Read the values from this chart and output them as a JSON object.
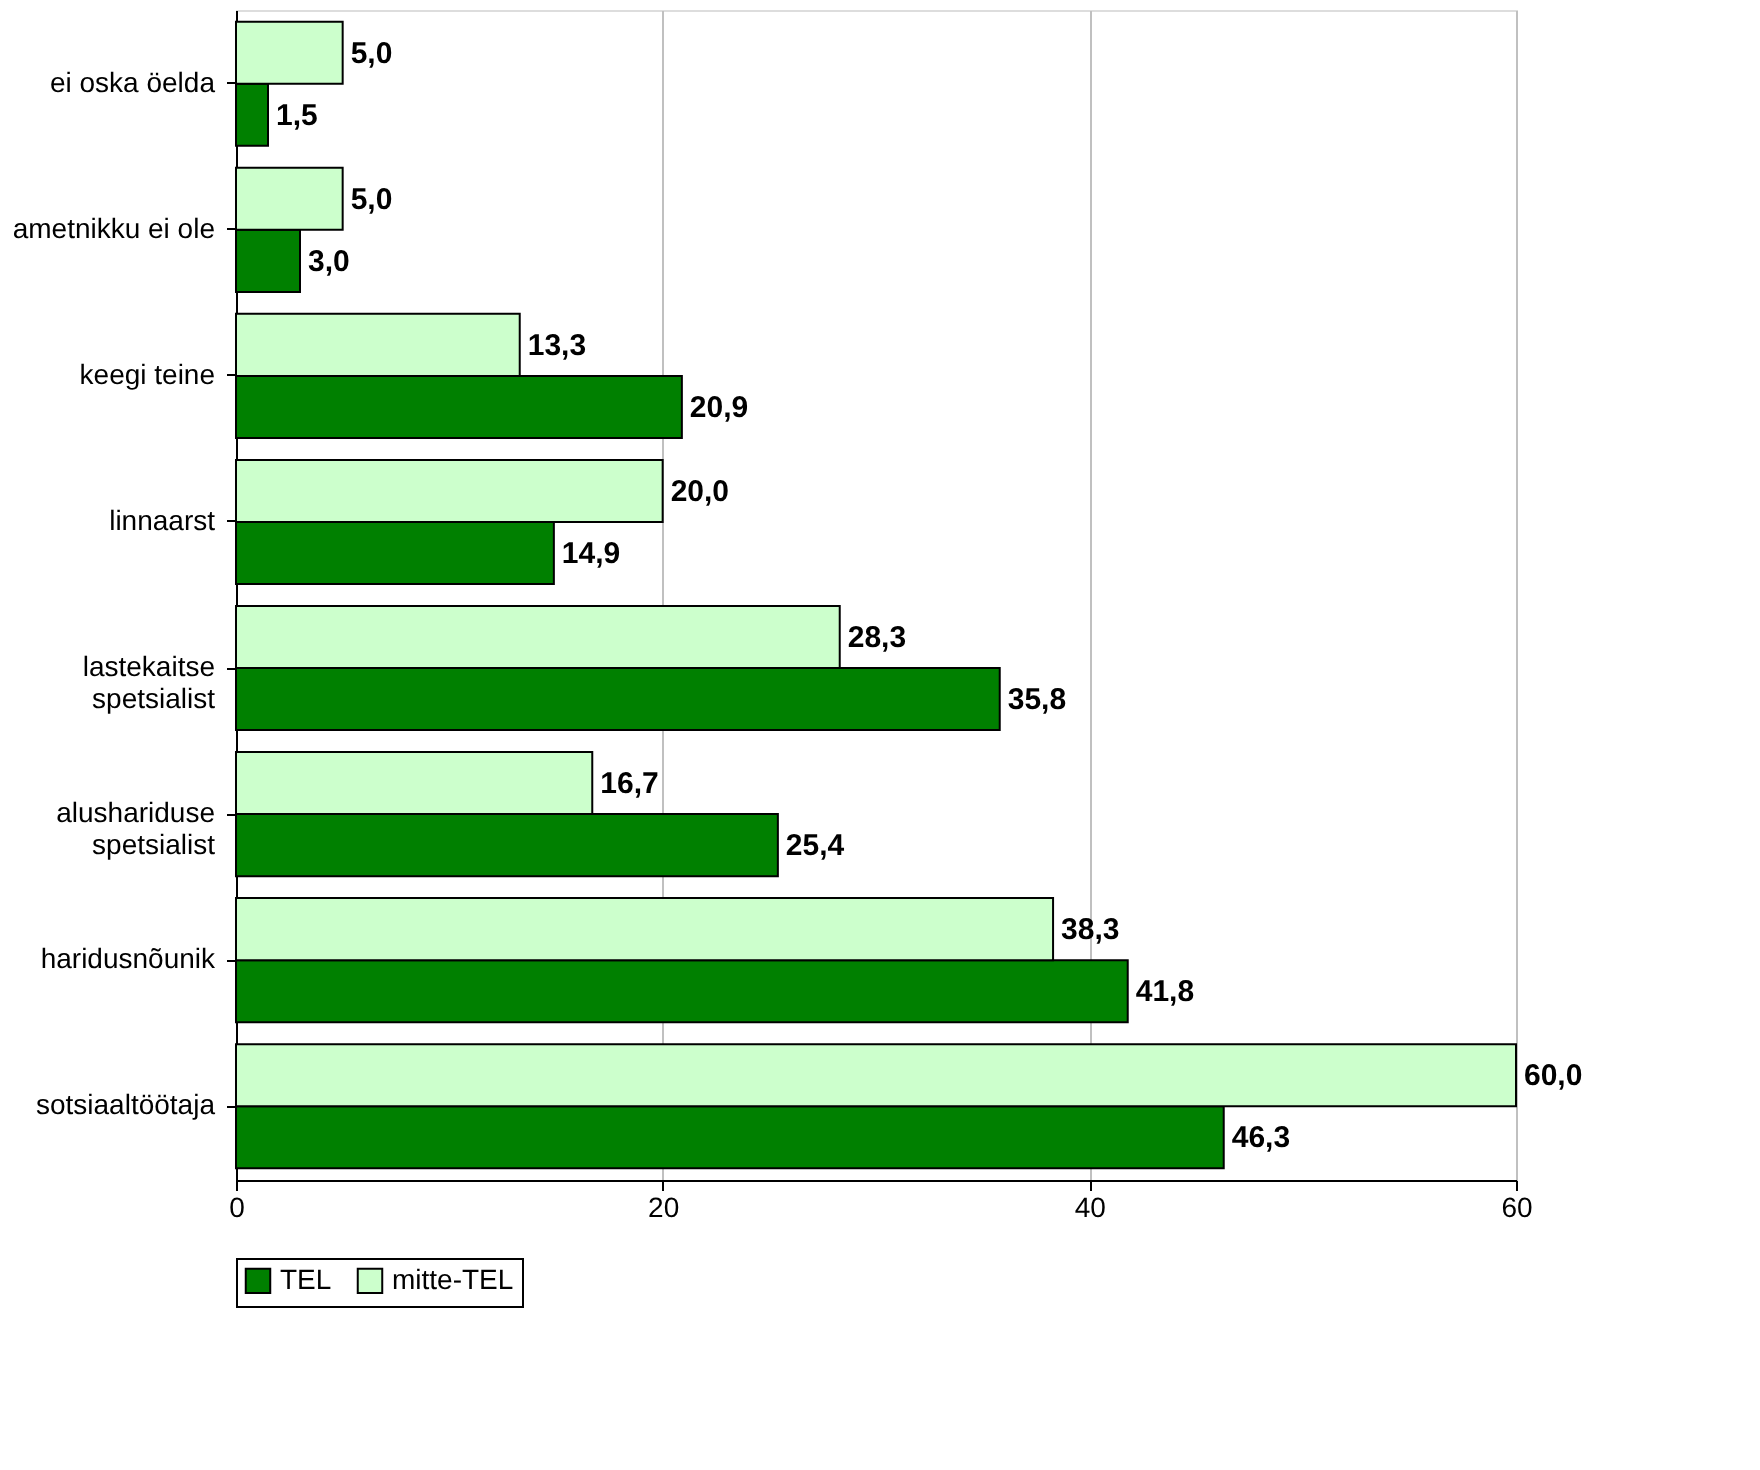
{
  "chart_data": {
    "type": "bar",
    "orientation": "horizontal",
    "categories": [
      "ei oska öelda",
      "ametnikku ei ole",
      "keegi teine",
      "linnaarst",
      "lastekaitse spetsialist",
      "alushariduse spetsialist",
      "haridusnõunik",
      "sotsiaaltöötaja"
    ],
    "series": [
      {
        "name": "TEL",
        "color": "#008000",
        "values": [
          1.5,
          3.0,
          20.9,
          14.9,
          35.8,
          25.4,
          41.8,
          46.3
        ],
        "value_labels": [
          "1,5",
          "3,0",
          "20,9",
          "14,9",
          "35,8",
          "25,4",
          "41,8",
          "46,3"
        ]
      },
      {
        "name": "mitte-TEL",
        "color": "#ccffcc",
        "values": [
          5.0,
          5.0,
          13.3,
          20.0,
          28.3,
          16.7,
          38.3,
          60.0
        ],
        "value_labels": [
          "5,0",
          "5,0",
          "13,3",
          "20,0",
          "28,3",
          "16,7",
          "38,3",
          "60,0"
        ]
      }
    ],
    "xlim": [
      0,
      60
    ],
    "xticks": [
      0,
      20,
      40,
      60
    ],
    "grid": "x",
    "legend": "bottom"
  }
}
